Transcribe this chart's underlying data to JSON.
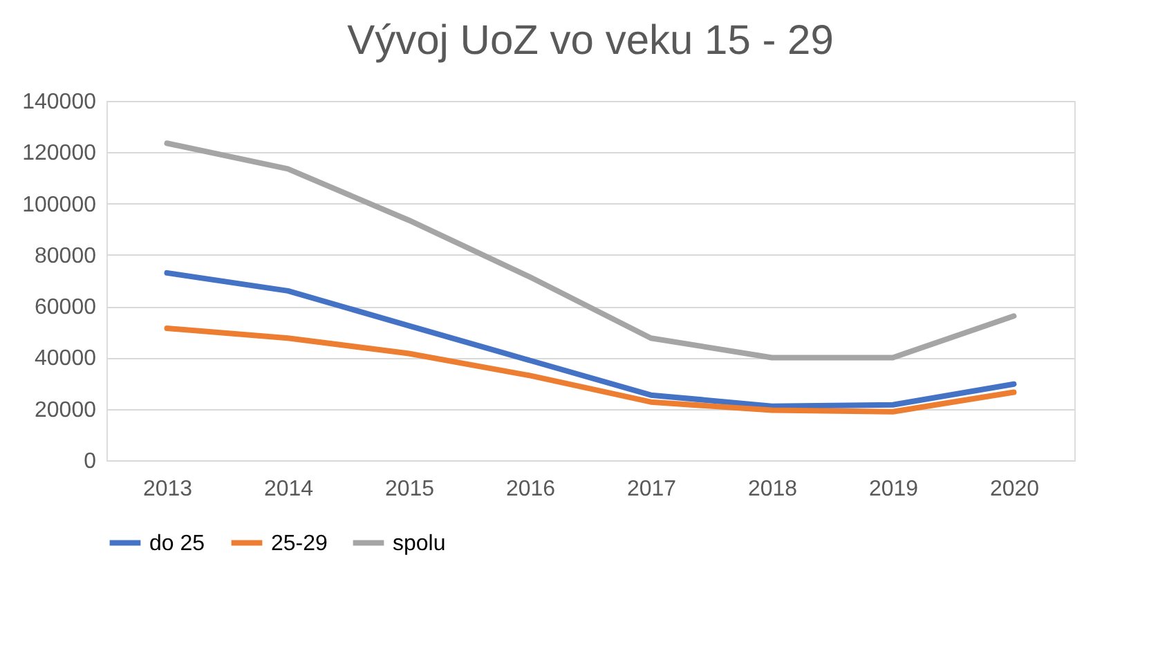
{
  "chart_data": {
    "type": "line",
    "title": "Vývoj UoZ vo veku 15 - 29",
    "categories": [
      "2013",
      "2014",
      "2015",
      "2016",
      "2017",
      "2018",
      "2019",
      "2020"
    ],
    "series": [
      {
        "name": "do 25",
        "color": "#4472c4",
        "values": [
          73000,
          66000,
          52400,
          38900,
          25400,
          21100,
          21600,
          29700
        ]
      },
      {
        "name": "25-29",
        "color": "#ed7d31",
        "values": [
          51400,
          47600,
          41600,
          33000,
          22700,
          19500,
          18900,
          26500
        ]
      },
      {
        "name": "spolu",
        "color": "#a5a5a5",
        "values": [
          123500,
          113500,
          93500,
          71400,
          47600,
          40000,
          40000,
          56200
        ]
      }
    ],
    "ylim": [
      0,
      140000
    ],
    "yticks": [
      0,
      20000,
      40000,
      60000,
      80000,
      100000,
      120000,
      140000
    ],
    "grid": "y",
    "legend": "bottom",
    "marker": "none",
    "line_style": "solid"
  }
}
